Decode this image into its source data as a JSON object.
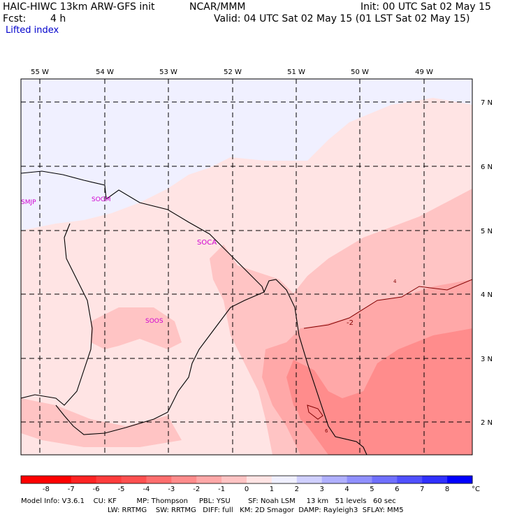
{
  "header": {
    "model": "HAIC-HIWC 13km ARW-GFS init",
    "org": "NCAR/MMM",
    "init": "Init: 00 UTC Sat 02 May 15",
    "fcst_label": "Fcst:",
    "fcst_value": "4 h",
    "valid": "Valid: 04 UTC Sat 02 May 15 (01 LST Sat 02 May 15)",
    "field": "Lifted index"
  },
  "map": {
    "lon_labels": [
      "55 W",
      "54 W",
      "53 W",
      "52 W",
      "51 W",
      "50 W",
      "49 W"
    ],
    "lat_labels": [
      "7 N",
      "6 N",
      "5 N",
      "4 N",
      "3 N",
      "2 N"
    ],
    "stations": [
      "SMJP",
      "SOGM",
      "SOCA",
      "SOOS"
    ],
    "contour_labels": [
      "-2",
      "4",
      "6"
    ]
  },
  "colorbar": {
    "unit": "°C",
    "ticks": [
      "-8",
      "-7",
      "-6",
      "-5",
      "-4",
      "-3",
      "-2",
      "-1",
      "0",
      "1",
      "2",
      "3",
      "4",
      "5",
      "6",
      "7",
      "8"
    ],
    "colors": [
      "#ff0000",
      "#ff2323",
      "#ff3c3c",
      "#ff5050",
      "#ff6e6e",
      "#ff8c8c",
      "#ffa8a8",
      "#ffc4c4",
      "#ffe4e4",
      "#f0f0ff",
      "#d0d0ff",
      "#b0b0ff",
      "#9090ff",
      "#7070ff",
      "#5050ff",
      "#3030ff",
      "#0000ff"
    ]
  },
  "footer": {
    "line1": "Model Info: V3.6.1    CU: KF         MP: Thompson     PBL: YSU        SF: Noah LSM     13 km   51 levels   60 sec",
    "line2": "LW: RRTMG    SW: RRTMG   DIFF: full   KM: 2D Smagor  DAMP: Rayleigh3  SFLAY: MM5"
  }
}
